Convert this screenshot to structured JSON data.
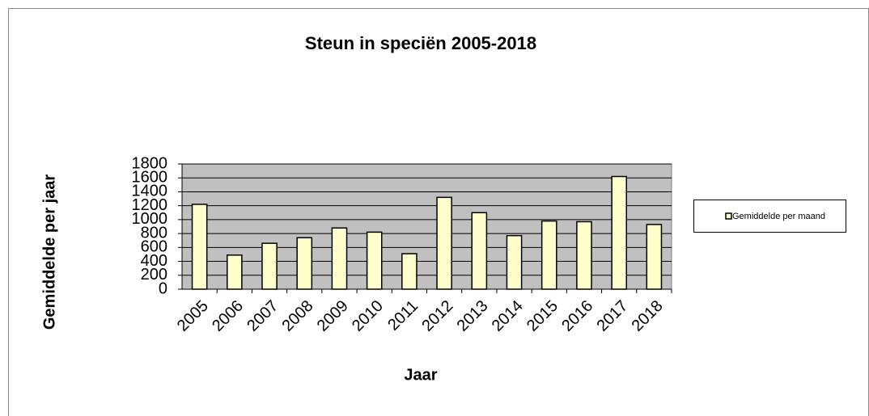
{
  "chart_data": {
    "type": "bar",
    "title": "Steun in speciën 2005-2018",
    "x_label": "Jaar",
    "y_label": "Gemiddelde per jaar",
    "categories": [
      "2005",
      "2006",
      "2007",
      "2008",
      "2009",
      "2010",
      "2011",
      "2012",
      "2013",
      "2014",
      "2015",
      "2016",
      "2017",
      "2018"
    ],
    "series": [
      {
        "name": "Gemiddelde per maand",
        "color": "#ffffcc",
        "values": [
          1220,
          490,
          660,
          740,
          880,
          820,
          510,
          1320,
          1100,
          770,
          980,
          970,
          1620,
          930
        ]
      }
    ],
    "ylim": [
      0,
      1800
    ],
    "yticks": [
      0,
      200,
      400,
      600,
      800,
      1000,
      1200,
      1400,
      1600,
      1800
    ],
    "grid": true,
    "legend": "right"
  }
}
